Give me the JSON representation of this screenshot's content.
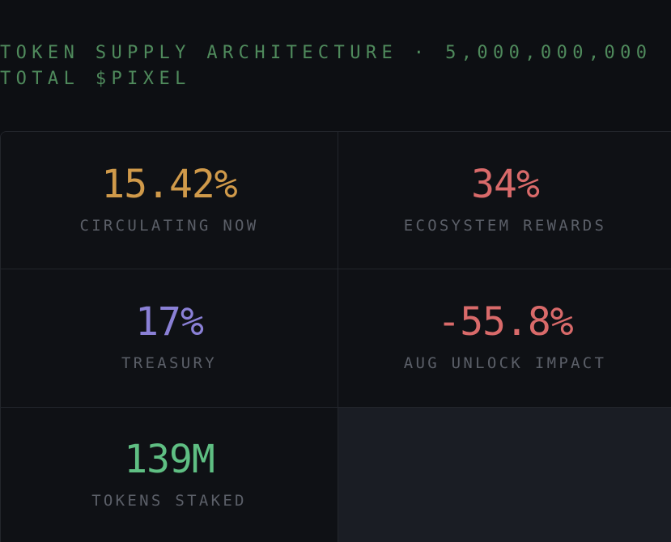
{
  "header": {
    "line1": "TOKEN SUPPLY ARCHITECTURE · 5,000,000,000",
    "line2": "TOTAL $PIXEL"
  },
  "stats": [
    {
      "value": "15.42%",
      "label": "CIRCULATING NOW",
      "color": "#d09a4a"
    },
    {
      "value": "34%",
      "label": "ECOSYSTEM REWARDS",
      "color": "#d96a6a"
    },
    {
      "value": "17%",
      "label": "TREASURY",
      "color": "#8a80d6"
    },
    {
      "value": "-55.8%",
      "label": "AUG UNLOCK IMPACT",
      "color": "#d96a6a"
    },
    {
      "value": "139M",
      "label": "TOKENS STAKED",
      "color": "#5fbf83"
    }
  ],
  "colors": {
    "background": "#0d0f13",
    "header_text": "#4f8a5c",
    "label_text": "#5b5f68",
    "empty_cell": "#1a1d24"
  }
}
